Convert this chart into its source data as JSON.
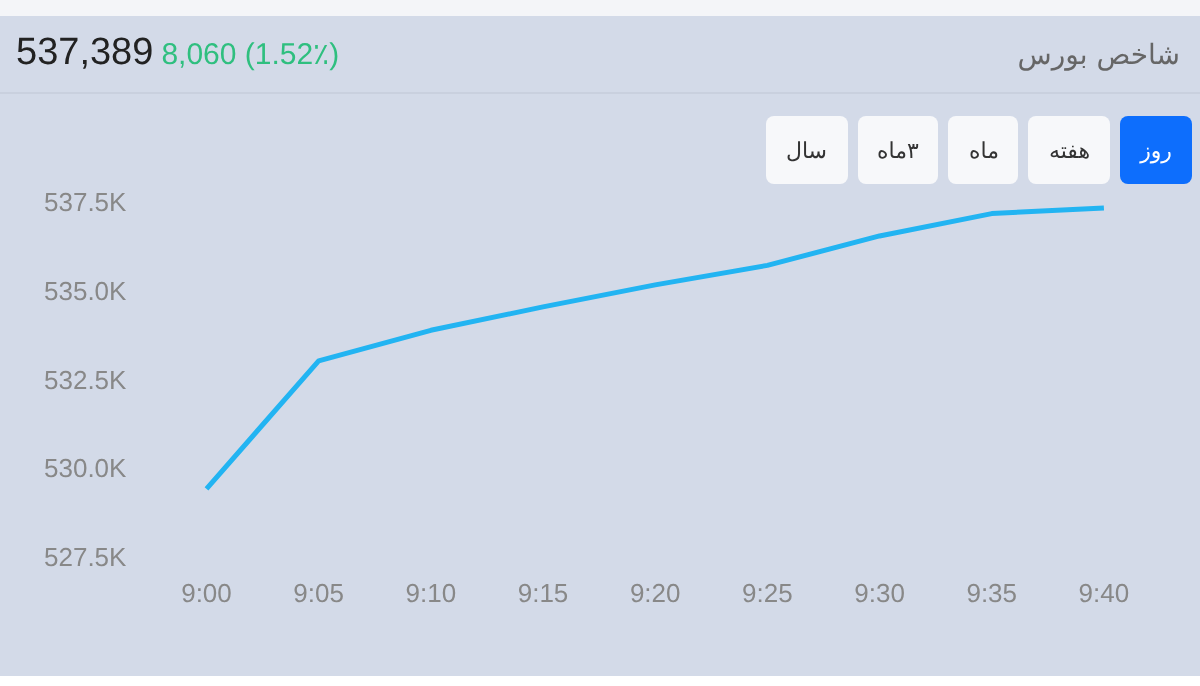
{
  "chart_data": {
    "type": "line",
    "title": "شاخص بورس",
    "subtitle": "537,389",
    "annotations": [
      "8,060 (1.52٪)",
      "روز",
      "هفته",
      "ماه",
      "۳ماه",
      "سال"
    ],
    "categories": [
      "9:00",
      "9:05",
      "9:10",
      "9:15",
      "9:20",
      "9:25",
      "9:30",
      "9:35",
      "9:40"
    ],
    "series": [
      {
        "color": "#22b4f2",
        "values": [
          529.47,
          533.08,
          533.94,
          534.6,
          535.22,
          535.77,
          536.6,
          537.23,
          537.39
        ]
      }
    ],
    "ylim": [
      527.5,
      537.5
    ],
    "yticks": [
      {
        "value": 527.5,
        "label": "527.5K"
      },
      {
        "value": 530,
        "label": "530.0K"
      },
      {
        "value": 532.5,
        "label": "532.5K"
      },
      {
        "value": 535,
        "label": "535.0K"
      },
      {
        "value": 537.5,
        "label": "537.5K"
      }
    ],
    "grid": false,
    "legend": false,
    "marker": "none",
    "line_style": "solid"
  }
}
